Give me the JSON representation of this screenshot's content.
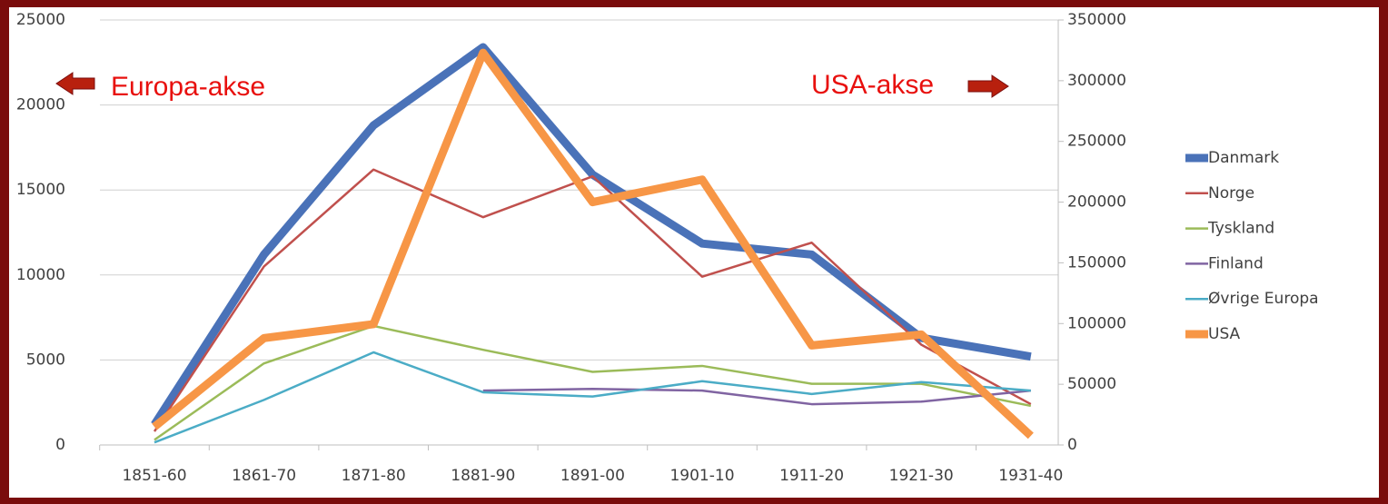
{
  "chart_data": {
    "type": "line",
    "categories": [
      "1851-60",
      "1861-70",
      "1871-80",
      "1881-90",
      "1891-00",
      "1901-10",
      "1911-20",
      "1921-30",
      "1931-40"
    ],
    "series": [
      {
        "name": "Danmark",
        "color": "#4a72b8",
        "values": [
          1200,
          11200,
          18800,
          23400,
          15900,
          11850,
          11200,
          6300,
          5200
        ]
      },
      {
        "name": "Norge",
        "color": "#c0504d",
        "values": [
          800,
          10500,
          16200,
          13400,
          15800,
          9900,
          11900,
          5900,
          2400
        ]
      },
      {
        "name": "Tyskland",
        "color": "#9bbb59",
        "values": [
          300,
          4800,
          7000,
          5600,
          4300,
          4650,
          3600,
          3600,
          2300
        ]
      },
      {
        "name": "Finland",
        "color": "#8064a2",
        "values": [
          null,
          null,
          null,
          3200,
          3300,
          3200,
          2400,
          2550,
          3200
        ]
      },
      {
        "name": "Øvrige Europa",
        "color": "#4bacc6",
        "values": [
          150,
          2650,
          5450,
          3100,
          2850,
          3750,
          3000,
          3700,
          3200
        ]
      },
      {
        "name": "USA",
        "color": "#f79646",
        "axis": "y2",
        "values": [
          15000,
          88000,
          99500,
          323000,
          200000,
          218500,
          82000,
          91000,
          7500
        ]
      }
    ],
    "ylim": [
      0,
      25000
    ],
    "yticks": [
      0,
      5000,
      10000,
      15000,
      20000,
      25000
    ],
    "y2lim": [
      0,
      350000
    ],
    "y2ticks": [
      0,
      50000,
      100000,
      150000,
      200000,
      250000,
      300000,
      350000
    ],
    "grid": true,
    "legend": "right",
    "annotations": [
      "Europa-akse",
      "USA-akse"
    ]
  }
}
